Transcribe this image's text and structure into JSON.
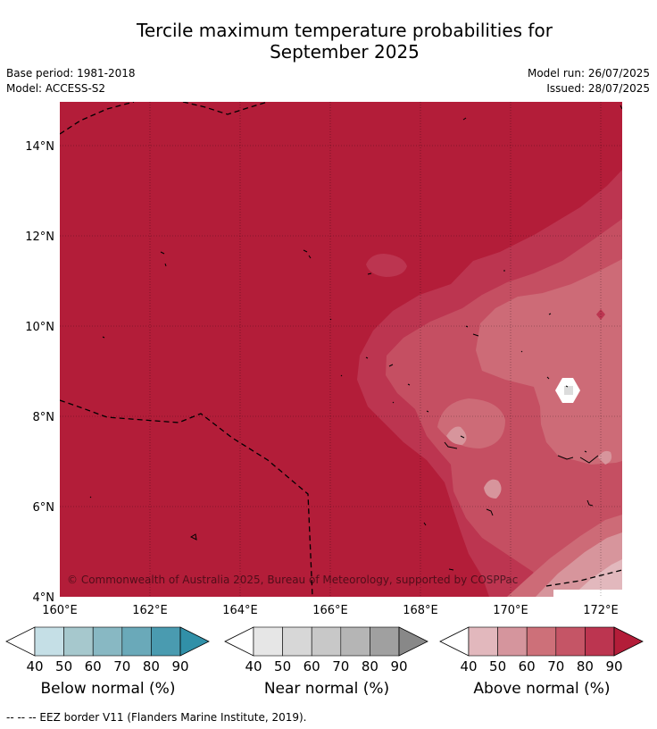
{
  "title": {
    "line1": "Tercile maximum temperature probabilities for",
    "line2": "September 2025"
  },
  "meta": {
    "base_period": "Base period: 1981-2018",
    "model": "Model: ACCESS-S2",
    "model_run": "Model run: 26/07/2025",
    "issued": "Issued: 28/07/2025"
  },
  "map": {
    "lat_labels": [
      "14°N",
      "12°N",
      "10°N",
      "8°N",
      "6°N",
      "4°N"
    ],
    "lon_labels": [
      "160°E",
      "162°E",
      "164°E",
      "166°E",
      "168°E",
      "170°E",
      "172°E"
    ],
    "copyright": "© Commonwealth of Australia 2025, Bureau of Meteorology, supported by COSPPac",
    "colors": {
      "above_90": "#b31d39",
      "above_80": "#bc3550",
      "above_70": "#c54f62",
      "above_60": "#cd6b77",
      "above_50": "#d7959c",
      "above_40": "#e2b8bd"
    }
  },
  "colorbars": [
    {
      "title": "Below normal (%)",
      "ticks": [
        "40",
        "50",
        "60",
        "70",
        "80",
        "90"
      ],
      "colors": [
        "#c5dfe6",
        "#a6c8cd",
        "#88b8c3",
        "#6aa9b9",
        "#4a9bb0",
        "#3190a8"
      ]
    },
    {
      "title": "Near normal (%)",
      "ticks": [
        "40",
        "50",
        "60",
        "70",
        "80",
        "90"
      ],
      "colors": [
        "#e6e6e6",
        "#d7d7d7",
        "#c8c8c8",
        "#b5b5b5",
        "#a0a0a0",
        "#888888"
      ]
    },
    {
      "title": "Above normal (%)",
      "ticks": [
        "40",
        "50",
        "60",
        "70",
        "80",
        "90"
      ],
      "colors": [
        "#e2b8bd",
        "#d5959d",
        "#cd7079",
        "#c55566",
        "#bc3550",
        "#b31d39"
      ]
    }
  ],
  "footer": "--  --  -- EEZ border V11 (Flanders Marine Institute, 2019)."
}
